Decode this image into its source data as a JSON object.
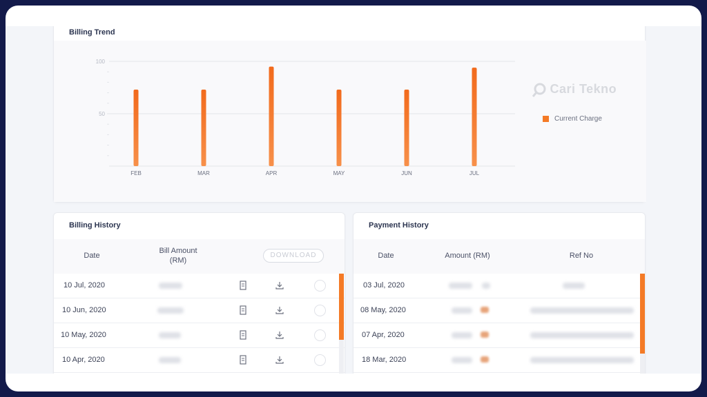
{
  "billing_trend": {
    "title": "Billing Trend",
    "legend": "Current Charge",
    "watermark": "Cari Tekno",
    "chart_data": {
      "type": "bar",
      "categories": [
        "FEB",
        "MAR",
        "APR",
        "MAY",
        "JUN",
        "JUL"
      ],
      "series": [
        {
          "name": "Current Charge",
          "values": [
            73,
            73,
            95,
            73,
            73,
            94
          ]
        }
      ],
      "yticks": [
        50,
        100
      ],
      "ylim": [
        0,
        100
      ],
      "grid": true,
      "legend_position": "right",
      "bar_color": "#f47a26"
    }
  },
  "billing_history": {
    "title": "Billing History",
    "columns": {
      "date": "Date",
      "amount": "Bill Amount (RM)"
    },
    "download_label": "DOWNLOAD",
    "rows": [
      {
        "date": "10 Jul, 2020"
      },
      {
        "date": "10 Jun, 2020"
      },
      {
        "date": "10 May, 2020"
      },
      {
        "date": "10 Apr, 2020"
      }
    ]
  },
  "payment_history": {
    "title": "Payment History",
    "columns": {
      "date": "Date",
      "amount": "Amount (RM)",
      "ref": "Ref No"
    },
    "rows": [
      {
        "date": "03 Jul, 2020"
      },
      {
        "date": "08 May, 2020"
      },
      {
        "date": "07 Apr, 2020"
      },
      {
        "date": "18 Mar, 2020"
      }
    ]
  },
  "colors": {
    "accent": "#f47a26",
    "frame": "#131a4a"
  },
  "icons": [
    "bill-document-icon",
    "download-icon",
    "select-radio",
    "magnifier-logo-icon"
  ]
}
